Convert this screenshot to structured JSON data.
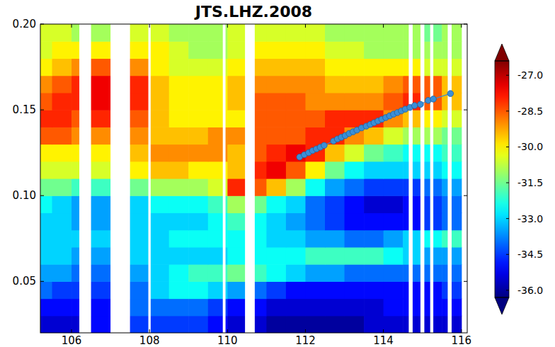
{
  "chart_data": {
    "type": "heatmap",
    "title": "JTS.LHZ.2008",
    "xlim": [
      105.2,
      116.15
    ],
    "ylim": [
      0.02,
      0.2
    ],
    "xticks": [
      106,
      108,
      110,
      112,
      114,
      116
    ],
    "yticks": [
      0.05,
      {
        "value": 0.1,
        "label": "0.10"
      },
      0.15,
      {
        "value": 0.2,
        "label": "0.20"
      }
    ],
    "x_edges": [
      105,
      105.5,
      106,
      106.5,
      107,
      107.5,
      108,
      108.5,
      109,
      109.5,
      110,
      110.5,
      111,
      111.5,
      112,
      112.5,
      113,
      113.5,
      114,
      114.5,
      115,
      115.5,
      116
    ],
    "y_edges": [
      0.02,
      0.03,
      0.04,
      0.05,
      0.06,
      0.07,
      0.08,
      0.09,
      0.1,
      0.11,
      0.12,
      0.13,
      0.14,
      0.15,
      0.16,
      0.17,
      0.18,
      0.19,
      0.2
    ],
    "cells": [
      [
        -35.5,
        -35.5,
        -35.5,
        -35,
        -35,
        -34.5,
        -34.5,
        -34.5,
        -34.5,
        -35,
        -35.5,
        -35.5,
        -36,
        -36,
        -36,
        -36,
        -36,
        -35.5,
        -35.5,
        -35.5,
        -35.5,
        -35.5
      ],
      [
        -35,
        -35,
        -35,
        -35,
        -34.5,
        -34,
        -34,
        -34,
        -34,
        -34.5,
        -35,
        -35,
        -35.5,
        -35.5,
        -35.5,
        -35.5,
        -35.5,
        -35.5,
        -35,
        -35,
        -35,
        -35
      ],
      [
        -34,
        -34.5,
        -34.5,
        -34.5,
        -34,
        -34,
        -33,
        -32.5,
        -32.5,
        -33,
        -33.5,
        -34,
        -34.5,
        -35,
        -35,
        -35,
        -35,
        -35,
        -35,
        -35,
        -35,
        -34.5
      ],
      [
        -33.5,
        -33.5,
        -34,
        -34,
        -33.5,
        -33.5,
        -33,
        -32.5,
        -32,
        -32,
        -31.5,
        -32,
        -32.5,
        -33,
        -33.5,
        -33.5,
        -34,
        -34,
        -34,
        -34,
        -34,
        -34
      ],
      [
        -33,
        -33,
        -33.5,
        -33.5,
        -33,
        -33,
        -33,
        -33,
        -33,
        -33,
        -32.5,
        -32.5,
        -32.5,
        -32.5,
        -32,
        -32,
        -32,
        -32,
        -32.5,
        -33,
        -33.5,
        -33.5
      ],
      [
        -33,
        -33,
        -33,
        -33,
        -33,
        -33,
        -33,
        -32.5,
        -32.5,
        -32.5,
        -32.5,
        -32.5,
        -33,
        -33,
        -33.5,
        -33.5,
        -34,
        -34,
        -33.5,
        -33,
        -32.5,
        -32
      ],
      [
        -33,
        -33,
        -33.5,
        -33.5,
        -33.5,
        -33,
        -33,
        -33,
        -33,
        -32.5,
        -32,
        -32.5,
        -33,
        -33.5,
        -34,
        -34.5,
        -35,
        -35,
        -35,
        -35,
        -34.5,
        -34
      ],
      [
        -32.5,
        -33,
        -33.5,
        -33.5,
        -33.5,
        -33,
        -32.5,
        -32.5,
        -32.5,
        -32,
        -31,
        -31.5,
        -32.5,
        -33,
        -34,
        -34.5,
        -35,
        -35.5,
        -35.5,
        -35,
        -34.5,
        -34
      ],
      [
        -31.5,
        -31.5,
        -32,
        -32,
        -32,
        -31.5,
        -31,
        -31,
        -31,
        -30.5,
        -28,
        -28.5,
        -29.5,
        -31,
        -32.5,
        -33.5,
        -34,
        -34.5,
        -34.5,
        -34.5,
        -34,
        -33.5
      ],
      [
        -30.5,
        -30.5,
        -30.5,
        -30.5,
        -30.5,
        -30,
        -29.5,
        -29.5,
        -30,
        -30,
        -29.5,
        -28,
        -27.5,
        -28.5,
        -30,
        -31.5,
        -32.5,
        -33,
        -33,
        -33,
        -33,
        -32.5
      ],
      [
        -30,
        -30,
        -30,
        -30,
        -30,
        -29.5,
        -29,
        -29,
        -29,
        -29,
        -29.5,
        -28.5,
        -28,
        -27.5,
        -28,
        -29.5,
        -30.5,
        -31.5,
        -32,
        -32.5,
        -32.5,
        -32
      ],
      [
        -28.5,
        -28.5,
        -29,
        -29,
        -29,
        -29,
        -29.5,
        -29.5,
        -29.5,
        -29,
        -29,
        -28.5,
        -28.5,
        -28.5,
        -28,
        -28,
        -29,
        -29.5,
        -30.5,
        -31,
        -31,
        -31.5
      ],
      [
        -28,
        -28,
        -28.5,
        -28,
        -28,
        -28.5,
        -29.5,
        -30,
        -30,
        -30,
        -30,
        -28.5,
        -28.5,
        -28.5,
        -28.5,
        -28,
        -28,
        -28,
        -29,
        -29.5,
        -30,
        -30.5
      ],
      [
        -28.5,
        -28,
        -28,
        -27.5,
        -27.5,
        -28,
        -29.5,
        -30,
        -30,
        -30,
        -29.5,
        -28.5,
        -28.5,
        -28.5,
        -29,
        -29,
        -29,
        -29,
        -28.5,
        -28,
        -28.5,
        -29.5
      ],
      [
        -29,
        -28.5,
        -28,
        -27.5,
        -27.5,
        -28,
        -29.5,
        -30,
        -30,
        -30,
        -29.5,
        -29,
        -29,
        -29,
        -29,
        -29.5,
        -29.5,
        -29.5,
        -29,
        -28.5,
        -28.5,
        -29.5
      ],
      [
        -30,
        -29.5,
        -29,
        -28.5,
        -28,
        -29,
        -30,
        -30.5,
        -30.5,
        -30.5,
        -30,
        -29.5,
        -29.5,
        -29.5,
        -29.5,
        -30,
        -30,
        -30,
        -30,
        -30,
        -30.5,
        -30.5
      ],
      [
        -30.5,
        -30,
        -30,
        -30,
        -29.5,
        -30,
        -30,
        -30.5,
        -31,
        -31,
        -30.5,
        -30,
        -30,
        -30,
        -30,
        -30.5,
        -30.5,
        -31,
        -31,
        -31,
        -31,
        -31
      ],
      [
        -30.5,
        -30.5,
        -31,
        -31,
        -30.5,
        -30.5,
        -30.5,
        -31,
        -31,
        -31,
        -30.5,
        -30.5,
        -30.5,
        -30.5,
        -30.5,
        -31,
        -31,
        -31,
        -31,
        -31,
        -31.5,
        -31
      ]
    ],
    "gaps": [
      [
        106.2,
        106.5
      ],
      [
        107.0,
        107.5
      ],
      [
        107.97,
        108.03
      ],
      [
        109.88,
        109.95
      ],
      [
        110.45,
        110.7
      ],
      [
        114.65,
        114.75
      ],
      [
        114.95,
        115.05
      ],
      [
        115.2,
        115.28
      ],
      [
        115.65,
        115.75
      ]
    ],
    "colorbar_lim": [
      -36.3,
      -26.4
    ],
    "colorbar_ticks": [
      {
        "value": -27,
        "label": "-27.0"
      },
      -28.5,
      {
        "value": -30,
        "label": "-30.0"
      },
      -31.5,
      {
        "value": -33,
        "label": "-33.0"
      },
      -34.5,
      {
        "value": -36,
        "label": "-36.0"
      }
    ],
    "series": [
      {
        "type": "line",
        "marker": "circle",
        "color": "#3b8fd6",
        "x": [
          111.85,
          111.97,
          112.08,
          112.18,
          112.28,
          112.38,
          112.48,
          112.72,
          112.82,
          112.92,
          113.02,
          113.12,
          113.22,
          113.32,
          113.44,
          113.56,
          113.66,
          113.76,
          113.86,
          113.96,
          114.06,
          114.16,
          114.26,
          114.36,
          114.46,
          114.56,
          114.68,
          114.8,
          114.95,
          115.15,
          115.28,
          115.72
        ],
        "values": [
          0.1225,
          0.1238,
          0.125,
          0.1262,
          0.1272,
          0.1282,
          0.1293,
          0.1318,
          0.133,
          0.134,
          0.135,
          0.1362,
          0.1372,
          0.1382,
          0.1395,
          0.1405,
          0.1415,
          0.1425,
          0.1435,
          0.1445,
          0.1455,
          0.1465,
          0.1475,
          0.1484,
          0.1494,
          0.1504,
          0.1514,
          0.1525,
          0.1532,
          0.1555,
          0.1563,
          0.1595
        ]
      }
    ]
  }
}
